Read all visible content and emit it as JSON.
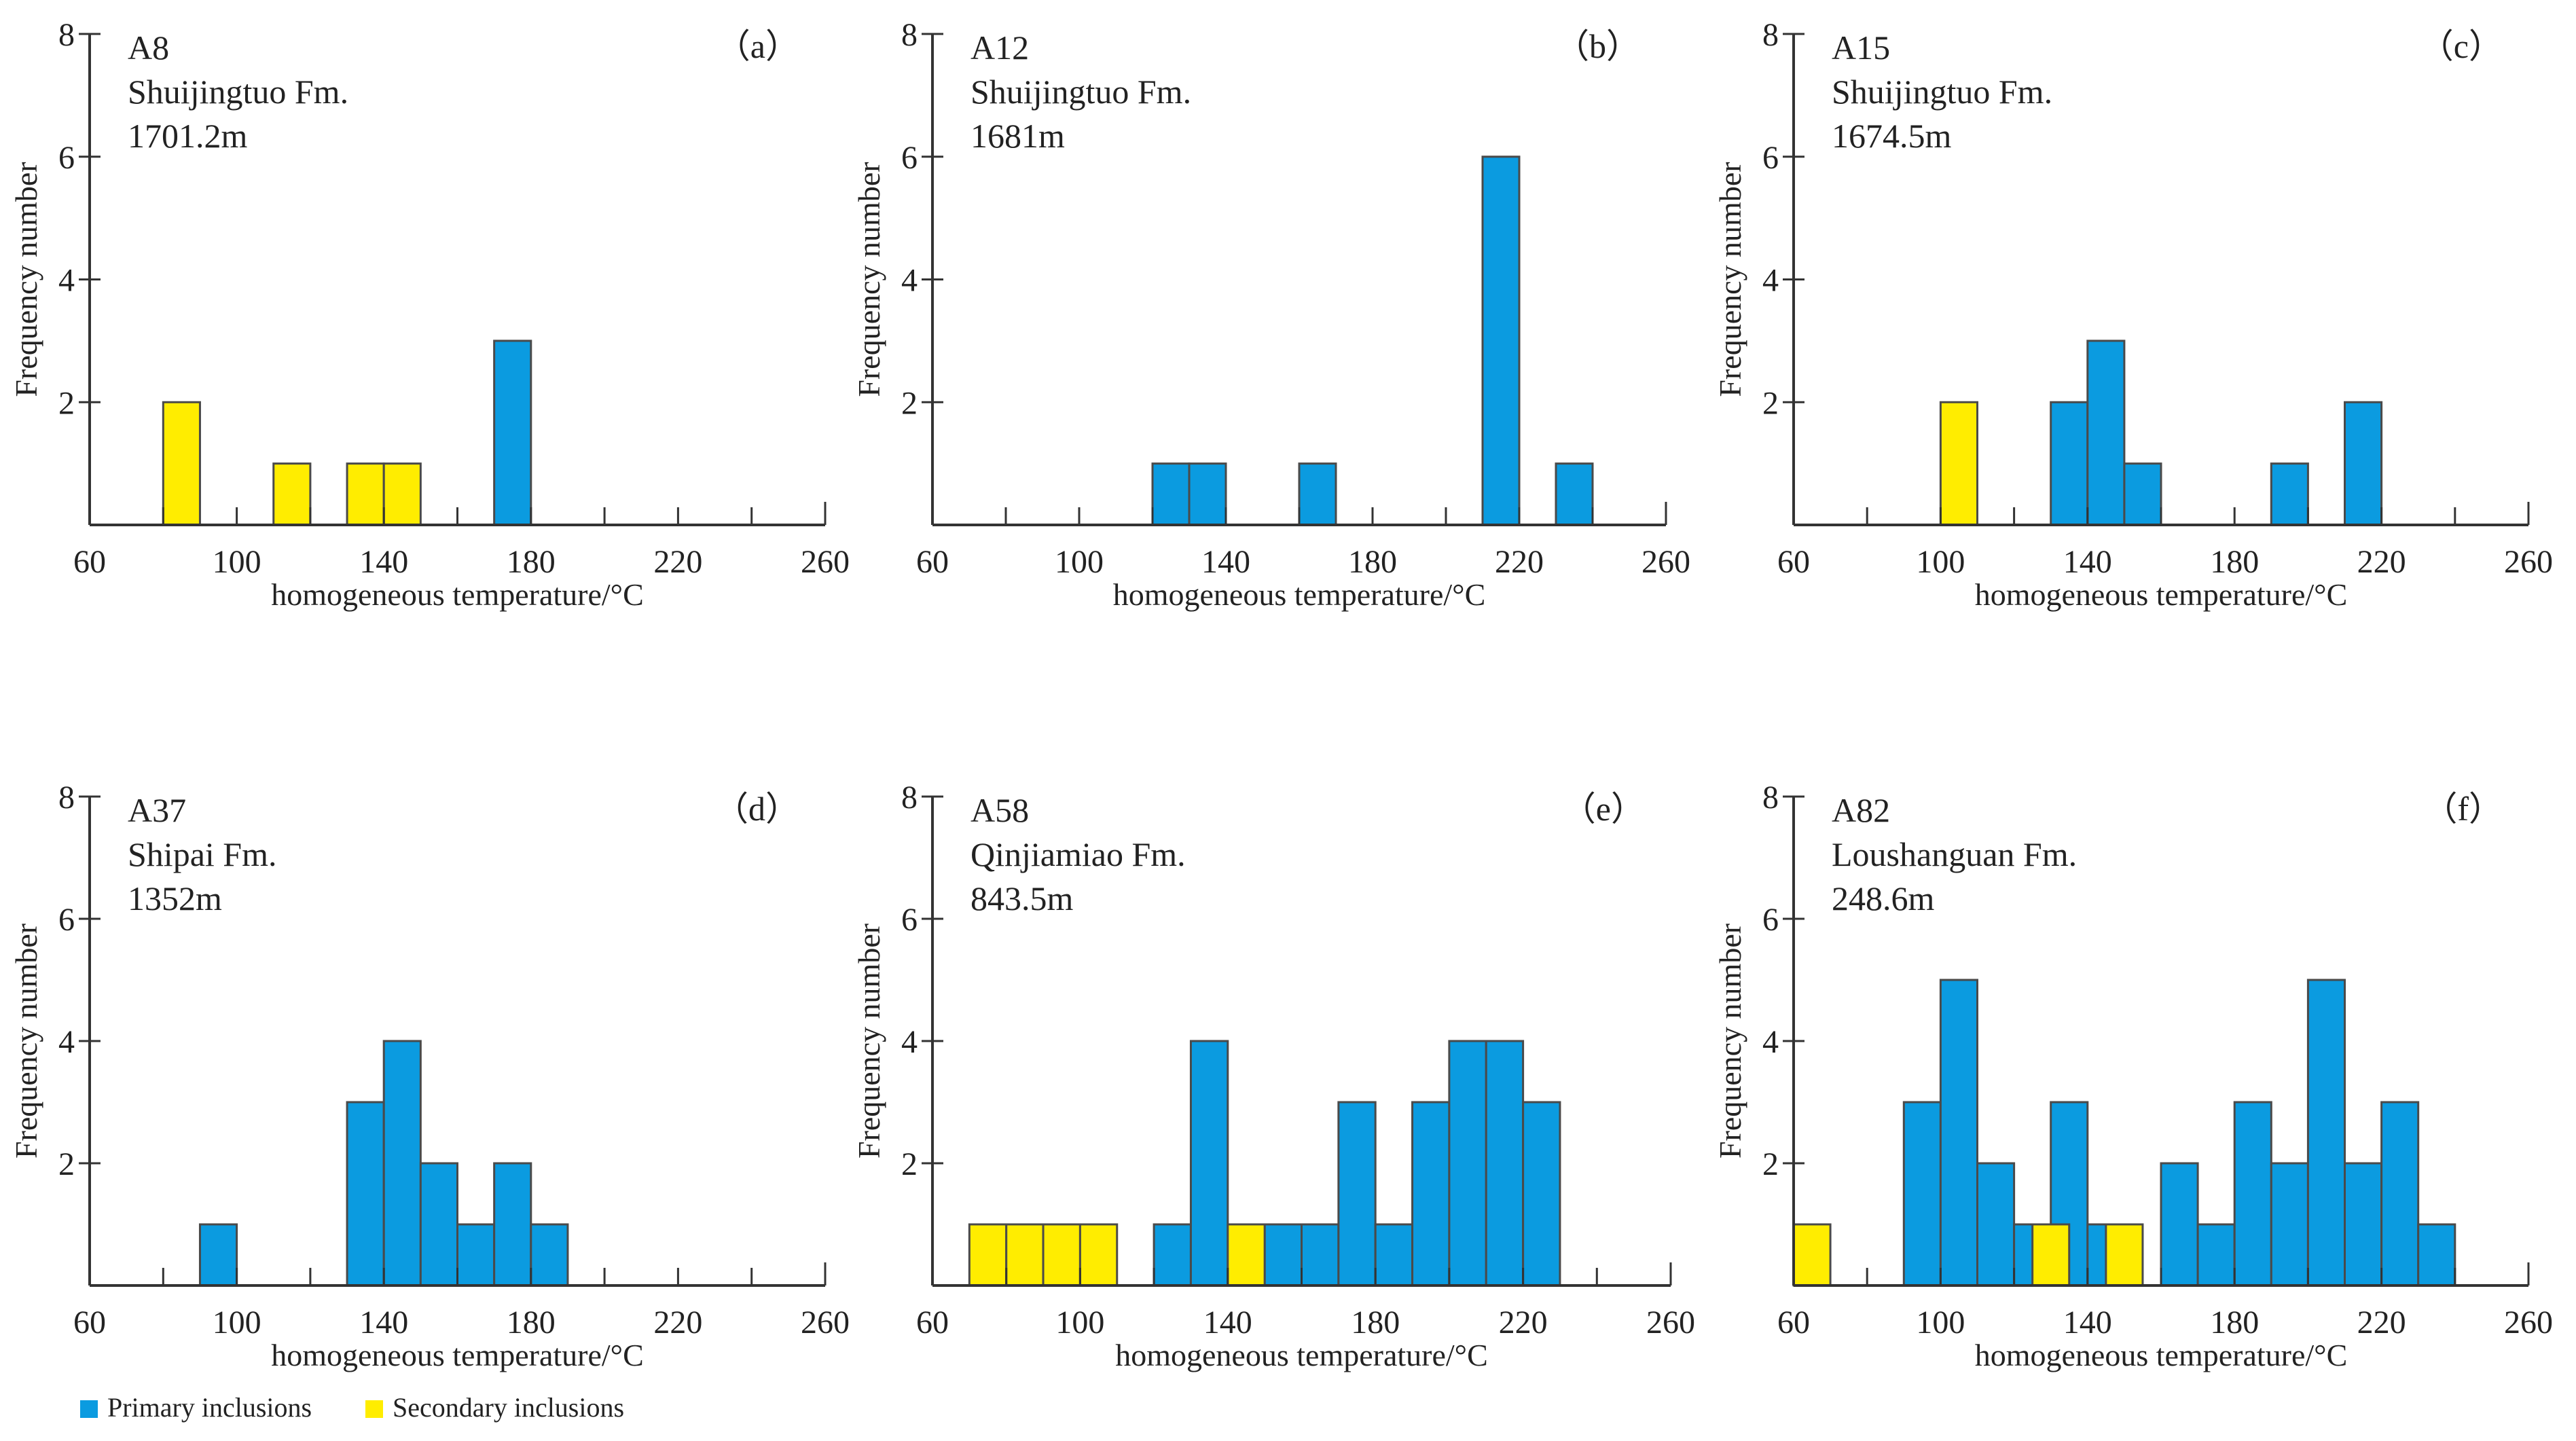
{
  "colors": {
    "primary": "#0b9be0",
    "secondary": "#ffed00",
    "bar_edge": "#4a4a4a",
    "axis": "#333333"
  },
  "legend": [
    {
      "label": "Primary inclusions",
      "color": "#0b9be0"
    },
    {
      "label": "Secondary inclusions",
      "color": "#ffed00"
    }
  ],
  "chart_data": [
    {
      "type": "bar",
      "panel_label": "（a）",
      "title_lines": [
        "A8",
        "Shuijingtuo  Fm.",
        "1701.2m"
      ],
      "xlabel": "homogeneous temperature/°C",
      "ylabel": "Frequency number",
      "xlim": [
        60,
        260
      ],
      "ylim": [
        0,
        8
      ],
      "bin_width": 10,
      "xticks": [
        60,
        100,
        140,
        180,
        220,
        260
      ],
      "yticks": [
        2,
        4,
        6,
        8
      ],
      "series": [
        {
          "name": "Primary inclusions",
          "bins": [
            [
              170,
              3
            ]
          ]
        },
        {
          "name": "Secondary inclusions",
          "bins": [
            [
              80,
              2
            ],
            [
              110,
              1
            ],
            [
              130,
              1
            ],
            [
              140,
              1
            ]
          ]
        }
      ]
    },
    {
      "type": "bar",
      "panel_label": "（b）",
      "title_lines": [
        "A12",
        "Shuijingtuo  Fm.",
        "1681m"
      ],
      "xlabel": "homogeneous temperature/°C",
      "ylabel": "Frequency number",
      "xlim": [
        60,
        260
      ],
      "ylim": [
        0,
        8
      ],
      "bin_width": 10,
      "xticks": [
        60,
        100,
        140,
        180,
        220,
        260
      ],
      "yticks": [
        2,
        4,
        6,
        8
      ],
      "series": [
        {
          "name": "Primary inclusions",
          "bins": [
            [
              120,
              1
            ],
            [
              130,
              1
            ],
            [
              160,
              1
            ],
            [
              210,
              6
            ],
            [
              230,
              1
            ]
          ]
        },
        {
          "name": "Secondary inclusions",
          "bins": []
        }
      ]
    },
    {
      "type": "bar",
      "panel_label": "（c）",
      "title_lines": [
        "A15",
        "Shuijingtuo Fm.",
        "1674.5m"
      ],
      "xlabel": "homogeneous temperature/°C",
      "ylabel": "Frequency number",
      "xlim": [
        60,
        260
      ],
      "ylim": [
        0,
        8
      ],
      "bin_width": 10,
      "xticks": [
        60,
        100,
        140,
        180,
        220,
        260
      ],
      "yticks": [
        2,
        4,
        6,
        8
      ],
      "series": [
        {
          "name": "Primary inclusions",
          "bins": [
            [
              130,
              2
            ],
            [
              140,
              3
            ],
            [
              150,
              1
            ],
            [
              190,
              1
            ],
            [
              210,
              2
            ]
          ]
        },
        {
          "name": "Secondary inclusions",
          "bins": [
            [
              100,
              2
            ]
          ]
        }
      ]
    },
    {
      "type": "bar",
      "panel_label": "（d）",
      "title_lines": [
        "A37",
        "Shipai Fm.",
        "1352m"
      ],
      "xlabel": "homogeneous temperature/°C",
      "ylabel": "Frequency number",
      "xlim": [
        60,
        260
      ],
      "ylim": [
        0,
        8
      ],
      "bin_width": 10,
      "xticks": [
        60,
        100,
        140,
        180,
        220,
        260
      ],
      "yticks": [
        2,
        4,
        6,
        8
      ],
      "series": [
        {
          "name": "Primary inclusions",
          "bins": [
            [
              90,
              1
            ],
            [
              130,
              3
            ],
            [
              140,
              4
            ],
            [
              150,
              2
            ],
            [
              160,
              1
            ],
            [
              170,
              2
            ],
            [
              180,
              1
            ]
          ]
        },
        {
          "name": "Secondary inclusions",
          "bins": []
        }
      ]
    },
    {
      "type": "bar",
      "panel_label": "（e）",
      "title_lines": [
        "A58",
        "Qinjiamiao Fm.",
        "843.5m"
      ],
      "xlabel": "homogeneous temperature/°C",
      "ylabel": "Frequency number",
      "xlim": [
        60,
        260
      ],
      "ylim": [
        0,
        8
      ],
      "bin_width": 10,
      "xticks": [
        60,
        100,
        140,
        180,
        220,
        260
      ],
      "yticks": [
        2,
        4,
        6,
        8
      ],
      "series": [
        {
          "name": "Primary inclusions",
          "bins": [
            [
              120,
              1
            ],
            [
              130,
              4
            ],
            [
              150,
              1
            ],
            [
              160,
              1
            ],
            [
              170,
              3
            ],
            [
              180,
              1
            ],
            [
              190,
              3
            ],
            [
              200,
              4
            ],
            [
              210,
              4
            ],
            [
              220,
              3
            ]
          ]
        },
        {
          "name": "Secondary inclusions",
          "bins": [
            [
              70,
              1
            ],
            [
              80,
              1
            ],
            [
              90,
              1
            ],
            [
              100,
              1
            ],
            [
              140,
              1
            ]
          ]
        }
      ]
    },
    {
      "type": "bar",
      "panel_label": "（f）",
      "title_lines": [
        "A82",
        "Loushanguan Fm.",
        "248.6m"
      ],
      "xlabel": "homogeneous temperature/°C",
      "ylabel": "Frequency number",
      "xlim": [
        60,
        260
      ],
      "ylim": [
        0,
        8
      ],
      "bin_width": 10,
      "xticks": [
        60,
        100,
        140,
        180,
        220,
        260
      ],
      "yticks": [
        2,
        4,
        6,
        8
      ],
      "series": [
        {
          "name": "Primary inclusions",
          "bins": [
            [
              90,
              3
            ],
            [
              100,
              5
            ],
            [
              110,
              2
            ],
            [
              120,
              1
            ],
            [
              130,
              3
            ],
            [
              140,
              1
            ],
            [
              160,
              2
            ],
            [
              170,
              1
            ],
            [
              180,
              3
            ],
            [
              190,
              2
            ],
            [
              200,
              5
            ],
            [
              210,
              2
            ],
            [
              220,
              3
            ],
            [
              230,
              1
            ]
          ]
        },
        {
          "name": "Secondary inclusions",
          "bins": [
            [
              60,
              1
            ],
            [
              125,
              1
            ],
            [
              145,
              1
            ]
          ]
        }
      ]
    }
  ]
}
